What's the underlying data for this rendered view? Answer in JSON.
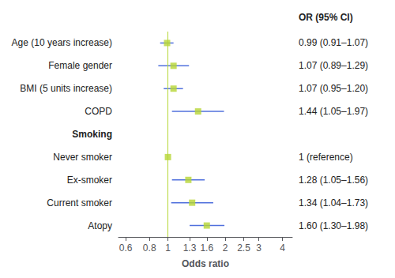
{
  "chart_data": {
    "type": "forest",
    "xlabel": "Odds ratio",
    "categories": [
      "Age (10 years increase)",
      "Female gender",
      "BMI (5 units increase)",
      "COPD",
      "Smoking",
      "Never smoker",
      "Ex-smoker",
      "Current smoker",
      "Atopy"
    ],
    "values": [
      0.99,
      1.07,
      1.07,
      1.44,
      null,
      1.0,
      1.28,
      1.34,
      1.6
    ],
    "ci_lo": [
      0.91,
      0.89,
      0.95,
      1.05,
      null,
      null,
      1.05,
      1.04,
      1.3
    ],
    "ci_hi": [
      1.07,
      1.29,
      1.2,
      1.97,
      null,
      null,
      1.56,
      1.73,
      1.98
    ],
    "value_labels": [
      "0.99 (0.91–1.07)",
      "1.07 (0.89–1.29)",
      "1.07 (0.95–1.20)",
      "1.44 (1.05–1.97)",
      null,
      "1 (reference)",
      "1.28 (1.05–1.56)",
      "1.34 (1.04–1.73)",
      "1.60 (1.30–1.98)"
    ],
    "annotation": "OR (95% CI)",
    "reference_line": 1.0,
    "xlim": [
      0.55,
      4.5
    ],
    "xticks": [
      0.6,
      0.8,
      1,
      1.3,
      1.6,
      2,
      2.5,
      3,
      4
    ],
    "log": "x",
    "grid": false,
    "data_labels": true
  }
}
